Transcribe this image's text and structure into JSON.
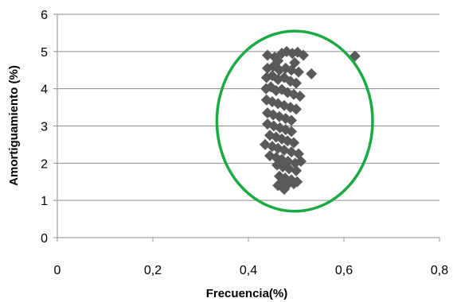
{
  "chart_data": {
    "type": "scatter",
    "title": "",
    "xlabel": "Frecuencia(%)",
    "ylabel": "Amortiguamiento (%)",
    "xlim": [
      0,
      0.8
    ],
    "ylim": [
      0,
      6
    ],
    "x_ticks": [
      "0",
      "0,2",
      "0,4",
      "0,6",
      "0,8"
    ],
    "y_ticks": [
      "0",
      "1",
      "2",
      "3",
      "4",
      "5",
      "6"
    ],
    "grid": "horizontal",
    "marker_color": "#595959",
    "ellipse_color": "#1aaa44",
    "ellipse": {
      "cx": 0.497,
      "cy": 3.13,
      "rx": 0.163,
      "ry": 2.42
    },
    "series": [
      {
        "marker": "diamond",
        "points": [
          [
            0.623,
            4.88
          ],
          [
            0.532,
            4.4
          ],
          [
            0.44,
            4.9
          ],
          [
            0.455,
            4.85
          ],
          [
            0.47,
            4.95
          ],
          [
            0.48,
            5.0
          ],
          [
            0.492,
            4.95
          ],
          [
            0.503,
            4.98
          ],
          [
            0.515,
            4.9
          ],
          [
            0.462,
            4.75
          ],
          [
            0.497,
            4.7
          ],
          [
            0.44,
            4.55
          ],
          [
            0.452,
            4.6
          ],
          [
            0.465,
            4.5
          ],
          [
            0.478,
            4.55
          ],
          [
            0.49,
            4.5
          ],
          [
            0.505,
            4.45
          ],
          [
            0.438,
            4.3
          ],
          [
            0.45,
            4.35
          ],
          [
            0.462,
            4.25
          ],
          [
            0.475,
            4.3
          ],
          [
            0.488,
            4.2
          ],
          [
            0.5,
            4.15
          ],
          [
            0.437,
            4.0
          ],
          [
            0.447,
            4.05
          ],
          [
            0.458,
            3.95
          ],
          [
            0.47,
            3.98
          ],
          [
            0.482,
            3.9
          ],
          [
            0.495,
            3.85
          ],
          [
            0.508,
            3.8
          ],
          [
            0.438,
            3.7
          ],
          [
            0.45,
            3.65
          ],
          [
            0.462,
            3.6
          ],
          [
            0.475,
            3.55
          ],
          [
            0.488,
            3.5
          ],
          [
            0.5,
            3.45
          ],
          [
            0.44,
            3.35
          ],
          [
            0.452,
            3.3
          ],
          [
            0.465,
            3.25
          ],
          [
            0.478,
            3.2
          ],
          [
            0.49,
            3.15
          ],
          [
            0.44,
            3.05
          ],
          [
            0.453,
            3.0
          ],
          [
            0.466,
            2.95
          ],
          [
            0.478,
            2.9
          ],
          [
            0.49,
            2.85
          ],
          [
            0.445,
            2.75
          ],
          [
            0.458,
            2.7
          ],
          [
            0.47,
            2.65
          ],
          [
            0.482,
            2.6
          ],
          [
            0.495,
            2.55
          ],
          [
            0.435,
            2.5
          ],
          [
            0.45,
            2.45
          ],
          [
            0.462,
            2.4
          ],
          [
            0.475,
            2.35
          ],
          [
            0.49,
            2.3
          ],
          [
            0.505,
            2.25
          ],
          [
            0.445,
            2.2
          ],
          [
            0.458,
            2.15
          ],
          [
            0.47,
            2.1
          ],
          [
            0.483,
            2.05
          ],
          [
            0.498,
            2.0
          ],
          [
            0.51,
            2.05
          ],
          [
            0.46,
            1.95
          ],
          [
            0.472,
            1.9
          ],
          [
            0.485,
            1.85
          ],
          [
            0.5,
            1.8
          ],
          [
            0.465,
            1.65
          ],
          [
            0.477,
            1.6
          ],
          [
            0.49,
            1.55
          ],
          [
            0.502,
            1.5
          ],
          [
            0.47,
            1.45
          ],
          [
            0.48,
            1.4
          ],
          [
            0.475,
            1.3
          ],
          [
            0.495,
            1.45
          ],
          [
            0.462,
            1.4
          ]
        ]
      }
    ]
  }
}
